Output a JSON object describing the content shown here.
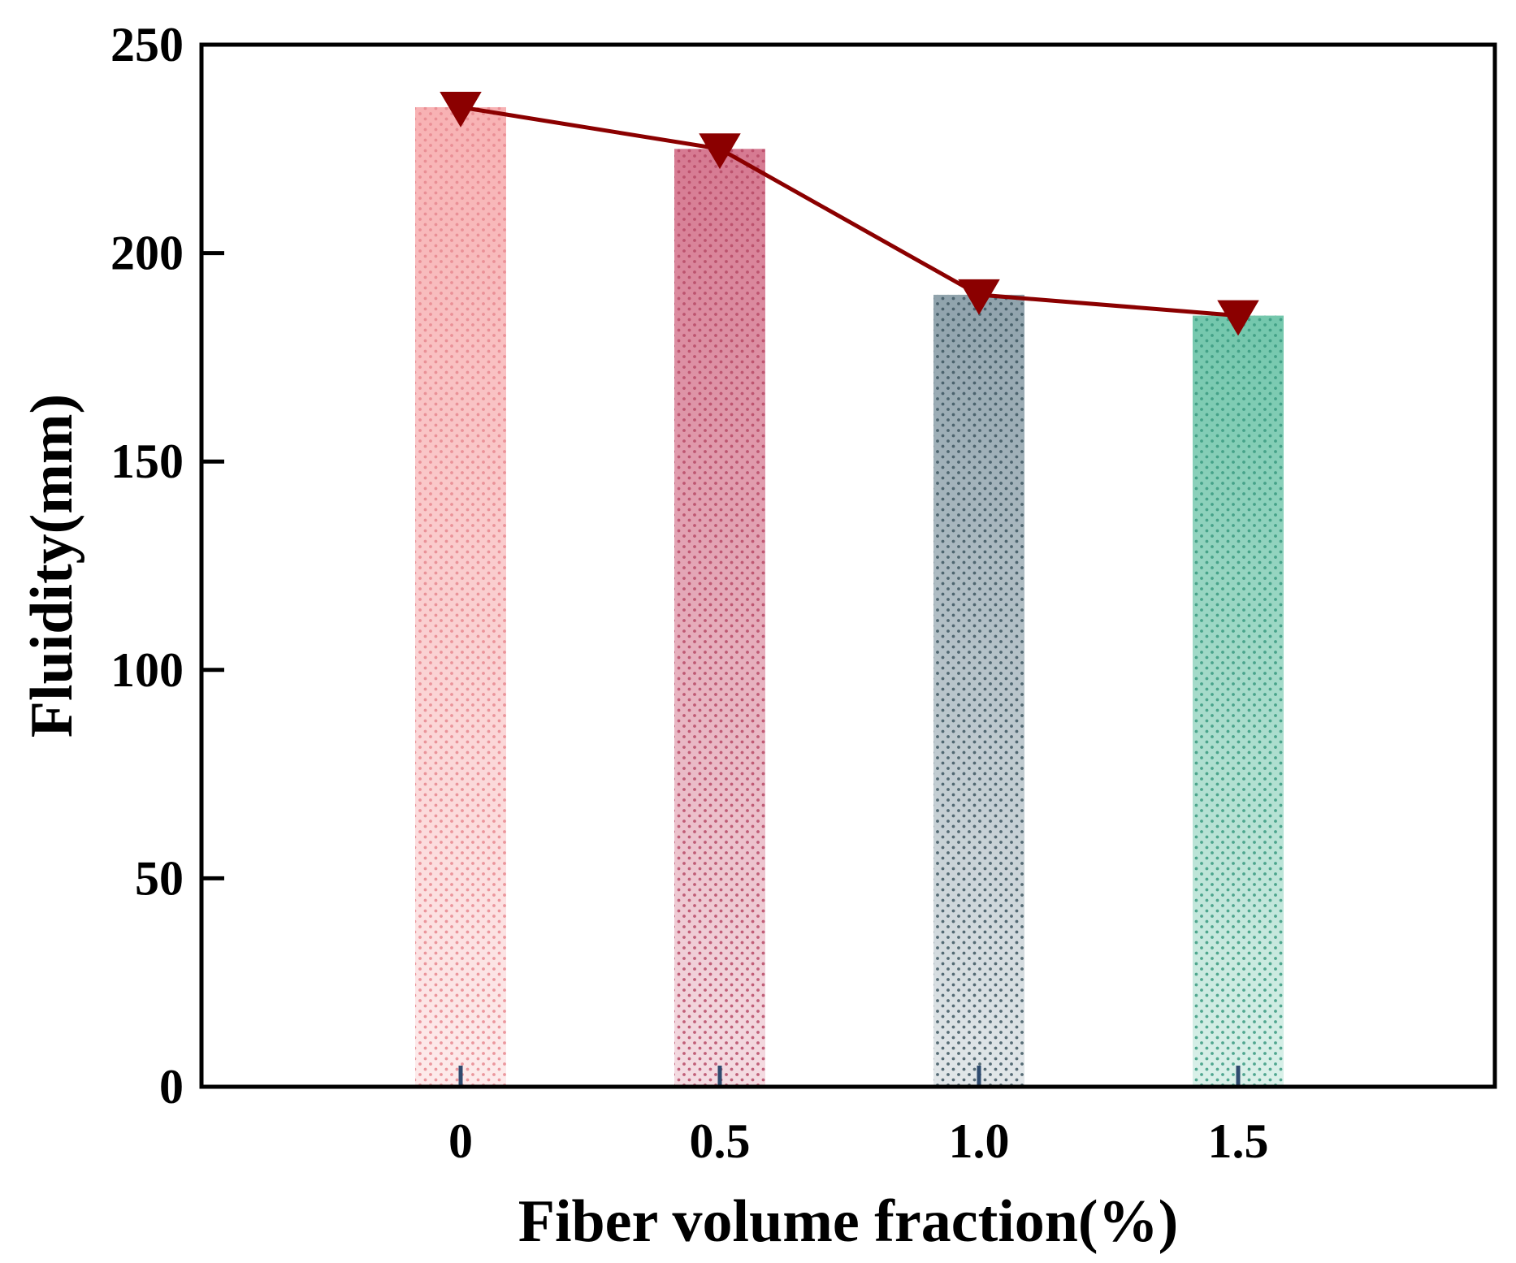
{
  "chart_data": {
    "type": "bar",
    "title": "",
    "xlabel": "Fiber volume fraction(%)",
    "ylabel": "Fluidity(mm)",
    "categories": [
      "0",
      "0.5",
      "1.0",
      "1.5"
    ],
    "values": [
      235,
      225,
      190,
      185
    ],
    "ylim": [
      0,
      250
    ],
    "yticks": [
      "0",
      "50",
      "100",
      "150",
      "200",
      "250"
    ],
    "grid": false,
    "bar_colors": [
      "#f7aeb0",
      "#d4738c",
      "#8a9ea8",
      "#6cc4a8"
    ],
    "pattern_colors": [
      "#e88890",
      "#b84a66",
      "#3d5660",
      "#3a9a80"
    ],
    "line_series": {
      "name": "Fluidity",
      "values": [
        235,
        225,
        190,
        185
      ],
      "color": "#8b0000",
      "marker": "triangle-down"
    },
    "tick_mark_color": "#2e4a6e"
  }
}
